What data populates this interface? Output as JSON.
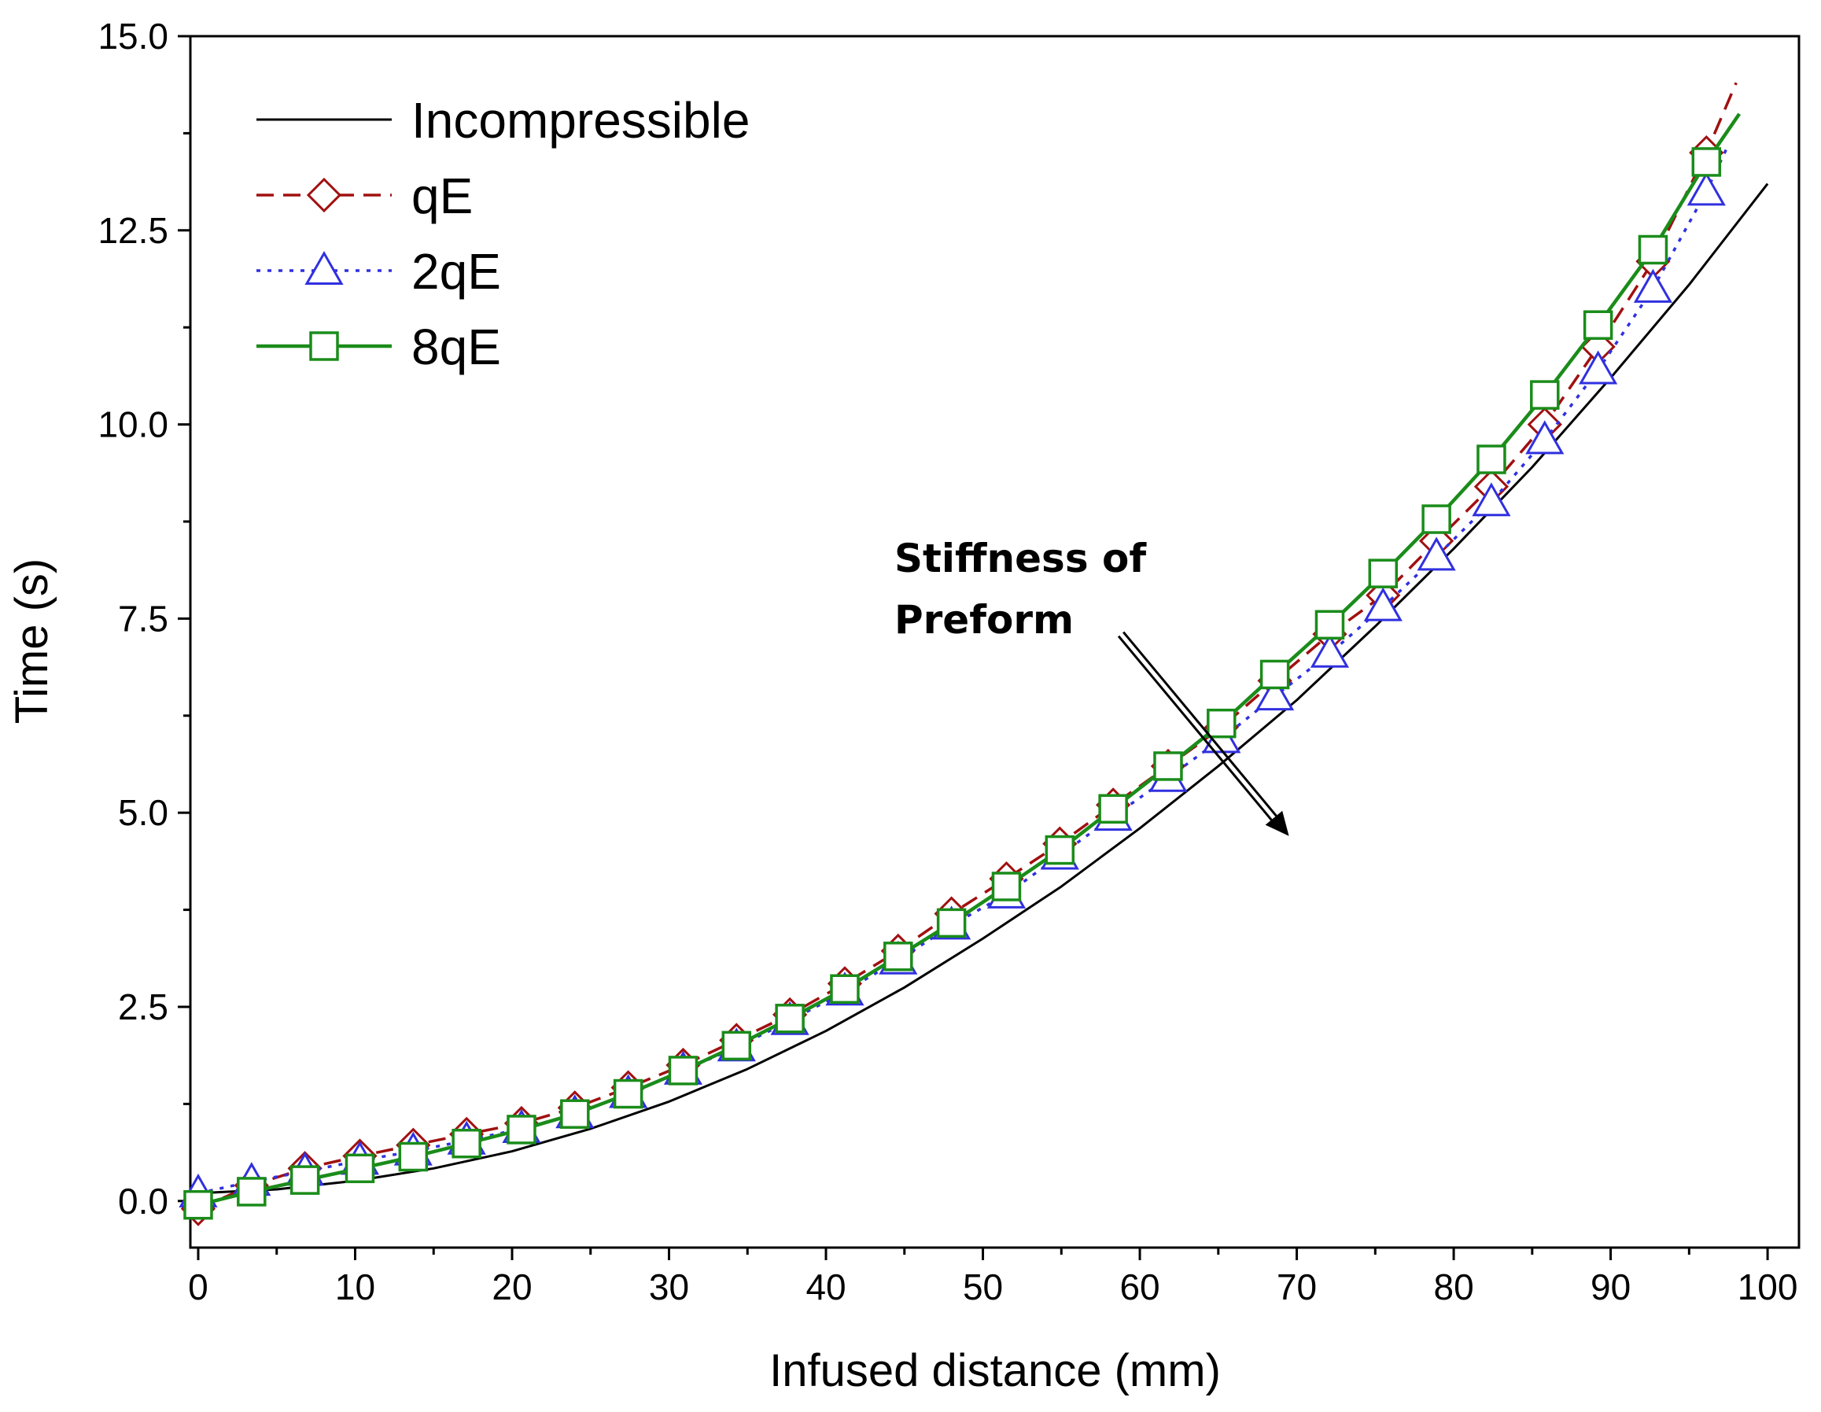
{
  "chart_data": {
    "type": "line",
    "title": "",
    "xlabel": "Infused distance (mm)",
    "ylabel": "Time (s)",
    "xlim": [
      -0.5,
      102
    ],
    "ylim": [
      -0.6,
      15
    ],
    "xticks": [
      0,
      10,
      20,
      30,
      40,
      50,
      60,
      70,
      80,
      90,
      100
    ],
    "yticks": [
      0,
      2.5,
      5,
      7.5,
      10,
      12.5,
      15
    ],
    "xtick_labels": [
      "0",
      "10",
      "20",
      "30",
      "40",
      "50",
      "60",
      "70",
      "80",
      "90",
      "100"
    ],
    "ytick_labels": [
      "0.0",
      "2.5",
      "5.0",
      "7.5",
      "10.0",
      "12.5",
      "15.0"
    ],
    "legend_position": "top-left",
    "series": [
      {
        "name": "Incompressible",
        "color": "#000000",
        "line": "solid",
        "marker": "none",
        "x": [
          0,
          5,
          10,
          15,
          20,
          25,
          30,
          35,
          40,
          45,
          50,
          55,
          60,
          65,
          70,
          75,
          80,
          85,
          90,
          95,
          100
        ],
        "y": [
          0.1,
          0.15,
          0.26,
          0.42,
          0.64,
          0.93,
          1.28,
          1.7,
          2.19,
          2.75,
          3.38,
          4.05,
          4.8,
          5.6,
          6.45,
          7.4,
          8.4,
          9.45,
          10.6,
          11.8,
          13.1
        ]
      },
      {
        "name": "qE",
        "color": "#a01010",
        "line": "dashed",
        "marker": "diamond",
        "x": [
          0,
          3.4,
          6.8,
          10.3,
          13.7,
          17.1,
          20.6,
          24,
          27.4,
          30.9,
          34.3,
          37.7,
          41.2,
          44.6,
          48,
          51.5,
          54.9,
          58.3,
          61.8,
          65.2,
          68.6,
          72.1,
          75.5,
          78.9,
          82.4,
          85.8,
          89.2,
          92.7,
          96.1
        ],
        "y": [
          -0.1,
          0.2,
          0.42,
          0.58,
          0.72,
          0.86,
          1.0,
          1.2,
          1.46,
          1.75,
          2.07,
          2.4,
          2.8,
          3.22,
          3.7,
          4.15,
          4.6,
          5.1,
          5.6,
          6.1,
          6.7,
          7.3,
          7.8,
          8.5,
          9.2,
          10.0,
          11.0,
          12.1,
          13.5
        ],
        "tail": {
          "x": [
            96.1,
            98
          ],
          "y": [
            13.5,
            14.4
          ]
        }
      },
      {
        "name": "2qE",
        "color": "#3030e0",
        "line": "dotted",
        "marker": "triangle",
        "x": [
          0,
          3.4,
          6.8,
          10.3,
          13.7,
          17.1,
          20.6,
          24,
          27.4,
          30.9,
          34.3,
          37.7,
          41.2,
          44.6,
          48,
          51.5,
          54.9,
          58.3,
          61.8,
          65.2,
          68.6,
          72.1,
          75.5,
          78.9,
          82.4,
          85.8,
          89.2,
          92.7,
          96.1
        ],
        "y": [
          0.1,
          0.25,
          0.38,
          0.52,
          0.64,
          0.78,
          0.93,
          1.12,
          1.38,
          1.68,
          1.98,
          2.32,
          2.7,
          3.1,
          3.55,
          3.95,
          4.45,
          4.95,
          5.45,
          5.95,
          6.5,
          7.05,
          7.65,
          8.3,
          9.0,
          9.8,
          10.7,
          11.75,
          13.0
        ],
        "tail": {
          "x": [
            96.1,
            97.5
          ],
          "y": [
            13.0,
            13.6
          ]
        }
      },
      {
        "name": "8qE",
        "color": "#1a8c1a",
        "line": "solid",
        "marker": "square",
        "x": [
          0,
          3.4,
          6.8,
          10.3,
          13.7,
          17.1,
          20.6,
          24,
          27.4,
          30.9,
          34.3,
          37.7,
          41.2,
          44.6,
          48,
          51.5,
          54.9,
          58.3,
          61.8,
          65.2,
          68.6,
          72.1,
          75.5,
          78.9,
          82.4,
          85.8,
          89.2,
          92.7,
          96.1
        ],
        "y": [
          -0.05,
          0.12,
          0.27,
          0.42,
          0.57,
          0.74,
          0.92,
          1.12,
          1.38,
          1.68,
          2.0,
          2.35,
          2.73,
          3.15,
          3.58,
          4.05,
          4.52,
          5.05,
          5.6,
          6.15,
          6.78,
          7.42,
          8.08,
          8.78,
          9.55,
          10.38,
          11.28,
          12.25,
          13.38
        ],
        "tail": {
          "x": [
            96.1,
            98.2
          ],
          "y": [
            13.38,
            14.0
          ]
        }
      }
    ],
    "annotation": {
      "line1": "Stiffness of",
      "line2": "Preform",
      "arrow_from": [
        58.8,
        7.3
      ],
      "arrow_to": [
        69.5,
        4.7
      ]
    }
  }
}
